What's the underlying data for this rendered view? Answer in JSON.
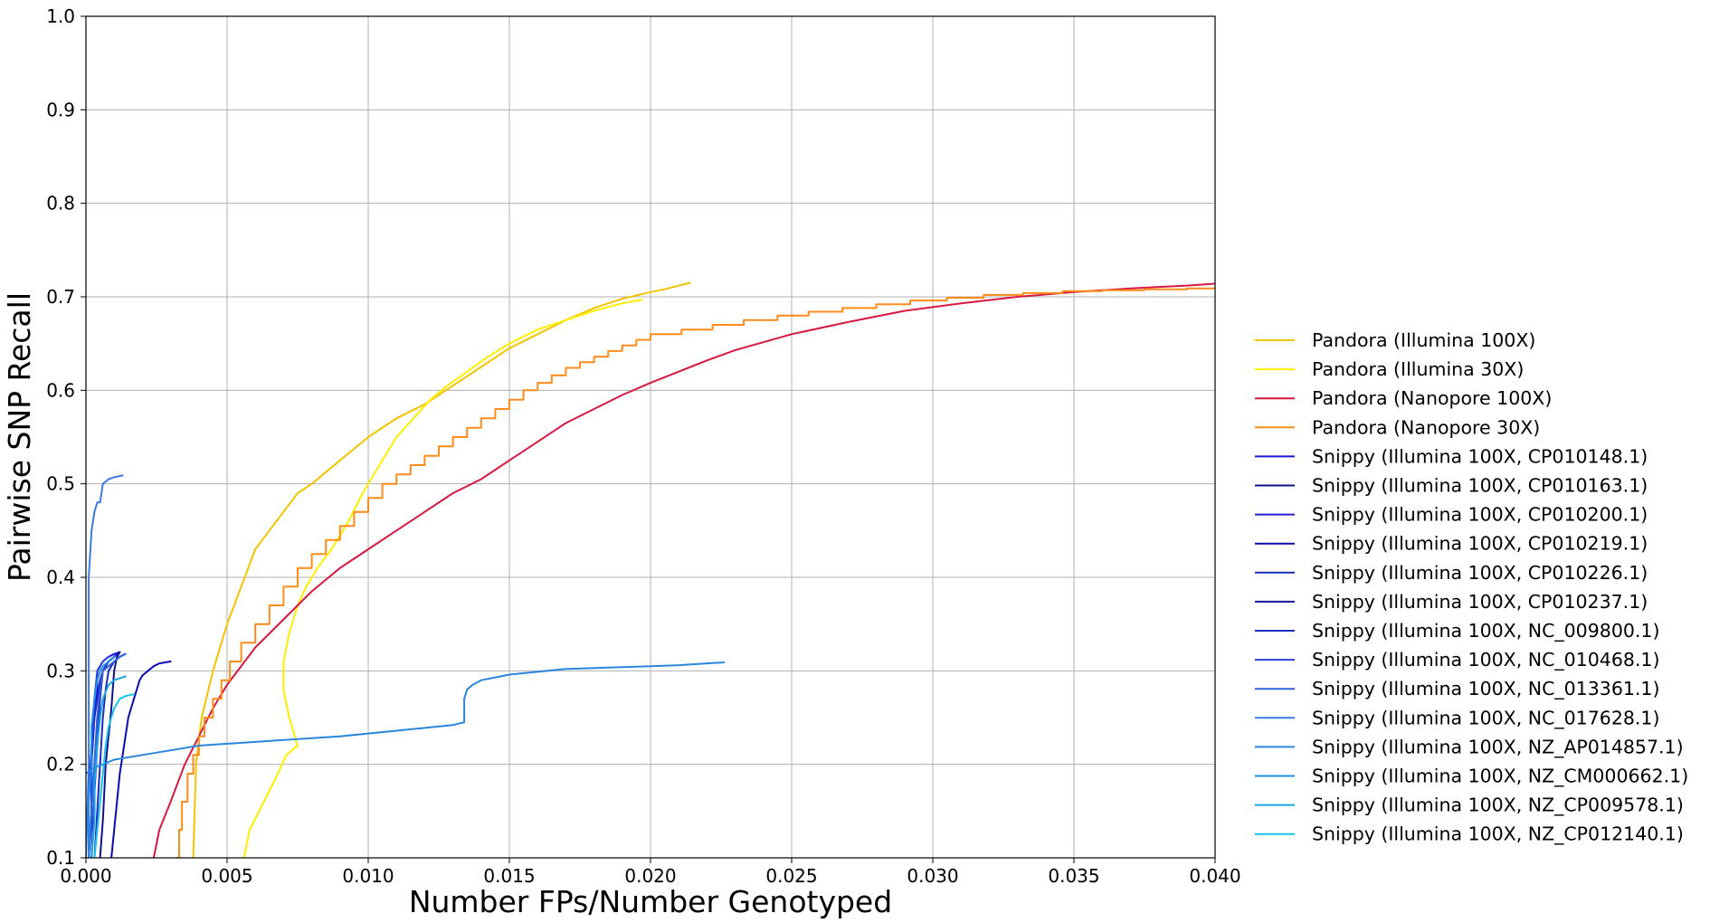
{
  "chart_data": {
    "type": "line",
    "title": "",
    "xlabel": "Number FPs/Number Genotyped",
    "ylabel": "Pairwise SNP Recall",
    "xlim": [
      0.0,
      0.04
    ],
    "ylim": [
      0.1,
      1.0
    ],
    "grid": true,
    "legend_position": "right",
    "x_ticks": [
      "0.000",
      "0.005",
      "0.010",
      "0.015",
      "0.020",
      "0.025",
      "0.030",
      "0.035",
      "0.040"
    ],
    "y_ticks": [
      "0.1",
      "0.2",
      "0.3",
      "0.4",
      "0.5",
      "0.6",
      "0.7",
      "0.8",
      "0.9",
      "1.0"
    ],
    "series": [
      {
        "name": "Pandora (Illumina 100X)",
        "color": "#f5c400",
        "step": false,
        "x": [
          0.0038,
          0.0039,
          0.0041,
          0.0045,
          0.005,
          0.0055,
          0.006,
          0.0065,
          0.007,
          0.0075,
          0.008,
          0.009,
          0.01,
          0.011,
          0.012,
          0.013,
          0.014,
          0.015,
          0.016,
          0.017,
          0.018,
          0.019,
          0.02,
          0.0205,
          0.021,
          0.0214
        ],
        "y": [
          0.1,
          0.2,
          0.25,
          0.3,
          0.35,
          0.39,
          0.43,
          0.45,
          0.47,
          0.49,
          0.5,
          0.525,
          0.55,
          0.57,
          0.585,
          0.605,
          0.625,
          0.645,
          0.66,
          0.675,
          0.688,
          0.698,
          0.705,
          0.708,
          0.712,
          0.715
        ]
      },
      {
        "name": "Pandora (Illumina 30X)",
        "color": "#ffee00",
        "step": false,
        "x": [
          0.0056,
          0.0058,
          0.0063,
          0.0068,
          0.0071,
          0.0075,
          0.0072,
          0.007,
          0.007,
          0.0072,
          0.0075,
          0.0078,
          0.0082,
          0.0087,
          0.0093,
          0.0098,
          0.0104,
          0.011,
          0.0116,
          0.0122,
          0.0128,
          0.0135,
          0.0142,
          0.015,
          0.016,
          0.017,
          0.018,
          0.019,
          0.0197
        ],
        "y": [
          0.1,
          0.13,
          0.16,
          0.19,
          0.21,
          0.22,
          0.25,
          0.28,
          0.31,
          0.34,
          0.37,
          0.39,
          0.41,
          0.43,
          0.46,
          0.49,
          0.52,
          0.55,
          0.57,
          0.59,
          0.605,
          0.62,
          0.635,
          0.65,
          0.665,
          0.675,
          0.685,
          0.693,
          0.697
        ]
      },
      {
        "name": "Pandora (Nanopore 100X)",
        "color": "#d7193f",
        "step": false,
        "x": [
          0.0024,
          0.0026,
          0.003,
          0.0035,
          0.004,
          0.0045,
          0.005,
          0.006,
          0.007,
          0.008,
          0.009,
          0.01,
          0.011,
          0.012,
          0.013,
          0.014,
          0.015,
          0.016,
          0.017,
          0.018,
          0.019,
          0.02,
          0.021,
          0.022,
          0.023,
          0.025,
          0.027,
          0.029,
          0.031,
          0.033,
          0.035,
          0.037,
          0.039,
          0.04
        ],
        "y": [
          0.1,
          0.13,
          0.16,
          0.2,
          0.23,
          0.26,
          0.285,
          0.325,
          0.355,
          0.385,
          0.41,
          0.43,
          0.45,
          0.47,
          0.49,
          0.505,
          0.525,
          0.545,
          0.565,
          0.58,
          0.595,
          0.608,
          0.62,
          0.632,
          0.643,
          0.66,
          0.673,
          0.685,
          0.693,
          0.7,
          0.705,
          0.709,
          0.712,
          0.714
        ]
      },
      {
        "name": "Pandora (Nanopore 30X)",
        "color": "#ff8c1a",
        "step": true,
        "x": [
          0.0032,
          0.0033,
          0.0034,
          0.0036,
          0.0038,
          0.004,
          0.0042,
          0.0045,
          0.0048,
          0.0051,
          0.0055,
          0.006,
          0.0065,
          0.007,
          0.0075,
          0.008,
          0.0085,
          0.009,
          0.0095,
          0.01,
          0.0105,
          0.011,
          0.0115,
          0.012,
          0.0125,
          0.013,
          0.0135,
          0.014,
          0.0145,
          0.015,
          0.0155,
          0.016,
          0.0165,
          0.017,
          0.0175,
          0.018,
          0.0185,
          0.019,
          0.0195,
          0.02,
          0.0211,
          0.0222,
          0.0233,
          0.0245,
          0.0256,
          0.0268,
          0.028,
          0.0292,
          0.0305,
          0.0318,
          0.0332,
          0.0346,
          0.036,
          0.0375,
          0.039,
          0.04
        ],
        "y": [
          0.1,
          0.13,
          0.16,
          0.19,
          0.21,
          0.23,
          0.25,
          0.27,
          0.29,
          0.31,
          0.33,
          0.35,
          0.37,
          0.39,
          0.41,
          0.425,
          0.44,
          0.455,
          0.47,
          0.485,
          0.5,
          0.51,
          0.52,
          0.53,
          0.54,
          0.55,
          0.56,
          0.57,
          0.58,
          0.59,
          0.6,
          0.608,
          0.616,
          0.624,
          0.63,
          0.636,
          0.642,
          0.648,
          0.654,
          0.66,
          0.665,
          0.67,
          0.675,
          0.68,
          0.684,
          0.688,
          0.692,
          0.696,
          0.699,
          0.702,
          0.704,
          0.706,
          0.707,
          0.708,
          0.709,
          0.71
        ]
      },
      {
        "name": "Snippy (Illumina 100X, CP010148.1)",
        "color": "#1a1ad6",
        "step": false,
        "x": [
          0.0001,
          0.0001,
          0.0002,
          0.0003,
          0.0004,
          0.0004,
          0.0005,
          0.0006,
          0.0008,
          0.001,
          0.0012
        ],
        "y": [
          0.1,
          0.16,
          0.22,
          0.25,
          0.28,
          0.3,
          0.305,
          0.31,
          0.315,
          0.318,
          0.32
        ]
      },
      {
        "name": "Snippy (Illumina 100X, CP010163.1)",
        "color": "#10108f",
        "step": false,
        "x": [
          0.0005,
          0.0006,
          0.0007,
          0.0009,
          0.001,
          0.0011,
          0.0012
        ],
        "y": [
          0.1,
          0.14,
          0.2,
          0.26,
          0.3,
          0.315,
          0.32
        ]
      },
      {
        "name": "Snippy (Illumina 100X, CP010200.1)",
        "color": "#2020d0",
        "step": false,
        "x": [
          0.0001,
          0.0002,
          0.0002,
          0.0003,
          0.0004,
          0.0005,
          0.0006,
          0.0008,
          0.001,
          0.0011
        ],
        "y": [
          0.1,
          0.14,
          0.2,
          0.25,
          0.27,
          0.29,
          0.3,
          0.31,
          0.315,
          0.318
        ]
      },
      {
        "name": "Snippy (Illumina 100X, CP010219.1)",
        "color": "#0a0ab4",
        "step": false,
        "x": [
          0.0009,
          0.001,
          0.0011,
          0.0012,
          0.0013,
          0.0014,
          0.0015,
          0.0017,
          0.0018,
          0.0019,
          0.002,
          0.0022,
          0.0024,
          0.0026,
          0.003
        ],
        "y": [
          0.1,
          0.13,
          0.16,
          0.19,
          0.21,
          0.23,
          0.25,
          0.27,
          0.28,
          0.29,
          0.295,
          0.3,
          0.305,
          0.308,
          0.31
        ]
      },
      {
        "name": "Snippy (Illumina 100X, CP010226.1)",
        "color": "#1c2ab8",
        "step": false,
        "x": [
          0.0003,
          0.0004,
          0.0005,
          0.0006,
          0.0007,
          0.0008,
          0.0009,
          0.001,
          0.0012,
          0.0014
        ],
        "y": [
          0.1,
          0.15,
          0.2,
          0.25,
          0.28,
          0.3,
          0.305,
          0.31,
          0.315,
          0.318
        ]
      },
      {
        "name": "Snippy (Illumina 100X, CP010237.1)",
        "color": "#1515a0",
        "step": false,
        "x": [
          0.0002,
          0.0003,
          0.0003,
          0.0004,
          0.0005,
          0.0006,
          0.0008,
          0.001
        ],
        "y": [
          0.1,
          0.15,
          0.2,
          0.25,
          0.28,
          0.3,
          0.31,
          0.315
        ]
      },
      {
        "name": "Snippy (Illumina 100X, NC_009800.1)",
        "color": "#1e2fc8",
        "step": false,
        "x": [
          0.0002,
          0.0003,
          0.0004,
          0.0005,
          0.0006,
          0.0008,
          0.001
        ],
        "y": [
          0.1,
          0.17,
          0.22,
          0.27,
          0.3,
          0.31,
          0.315
        ]
      },
      {
        "name": "Snippy (Illumina 100X, NC_010468.1)",
        "color": "#2a40e0",
        "step": false,
        "x": [
          0.0001,
          0.0002,
          0.0002,
          0.0003,
          0.0004,
          0.0006,
          0.0008
        ],
        "y": [
          0.1,
          0.15,
          0.22,
          0.27,
          0.3,
          0.31,
          0.315
        ]
      },
      {
        "name": "Snippy (Illumina 100X, NC_013361.1)",
        "color": "#2f63d8",
        "step": false,
        "x": [
          0.0001,
          0.0002,
          0.0003,
          0.0004,
          0.0005,
          0.0006,
          0.0008,
          0.001,
          0.0012,
          0.0014
        ],
        "y": [
          0.1,
          0.15,
          0.2,
          0.25,
          0.28,
          0.3,
          0.305,
          0.31,
          0.315,
          0.318
        ]
      },
      {
        "name": "Snippy (Illumina 100X, NC_017628.1)",
        "color": "#3a7ae6",
        "step": false,
        "x": [
          0.0,
          0.0001,
          0.0001,
          0.0001,
          0.0002,
          0.0003,
          0.0004,
          0.0005,
          0.0006,
          0.0008,
          0.001,
          0.0013
        ],
        "y": [
          0.1,
          0.2,
          0.3,
          0.4,
          0.45,
          0.47,
          0.48,
          0.48,
          0.5,
          0.505,
          0.507,
          0.509
        ]
      },
      {
        "name": "Snippy (Illumina 100X, NZ_AP014857.1)",
        "color": "#2a86dc",
        "step": false,
        "x": [
          0.0,
          0.0002,
          0.0006,
          0.001,
          0.002,
          0.003,
          0.004,
          0.005,
          0.006,
          0.007,
          0.008,
          0.009,
          0.01,
          0.011,
          0.012,
          0.013,
          0.0134,
          0.0134,
          0.0135,
          0.0137,
          0.014,
          0.0145,
          0.015,
          0.016,
          0.017,
          0.018,
          0.019,
          0.02,
          0.021,
          0.0215,
          0.022,
          0.0226
        ],
        "y": [
          0.19,
          0.195,
          0.2,
          0.205,
          0.21,
          0.215,
          0.22,
          0.222,
          0.224,
          0.226,
          0.228,
          0.23,
          0.233,
          0.236,
          0.239,
          0.242,
          0.245,
          0.27,
          0.28,
          0.285,
          0.29,
          0.293,
          0.296,
          0.299,
          0.302,
          0.303,
          0.304,
          0.305,
          0.306,
          0.307,
          0.308,
          0.309
        ]
      },
      {
        "name": "Snippy (Illumina 100X, NZ_CM000662.1)",
        "color": "#1b90e8",
        "step": false,
        "x": [
          0.0001,
          0.0001,
          0.0002,
          0.0002,
          0.0003,
          0.0004,
          0.0005,
          0.0006,
          0.0008,
          0.001
        ],
        "y": [
          0.1,
          0.16,
          0.2,
          0.24,
          0.27,
          0.29,
          0.3,
          0.305,
          0.31,
          0.315
        ]
      },
      {
        "name": "Snippy (Illumina 100X, NZ_CP009578.1)",
        "color": "#19a6e6",
        "step": false,
        "x": [
          0.0002,
          0.0003,
          0.0003,
          0.0004,
          0.0005,
          0.0006,
          0.0008,
          0.001,
          0.0012,
          0.0014
        ],
        "y": [
          0.1,
          0.14,
          0.18,
          0.22,
          0.25,
          0.27,
          0.285,
          0.29,
          0.292,
          0.294
        ]
      },
      {
        "name": "Snippy (Illumina 100X, NZ_CP012140.1)",
        "color": "#17c3ee",
        "step": false,
        "x": [
          0.0003,
          0.0004,
          0.0005,
          0.0006,
          0.0007,
          0.0008,
          0.0009,
          0.001,
          0.0011,
          0.0012,
          0.0014,
          0.0017
        ],
        "y": [
          0.1,
          0.13,
          0.16,
          0.19,
          0.22,
          0.24,
          0.25,
          0.26,
          0.265,
          0.27,
          0.273,
          0.275
        ]
      }
    ]
  }
}
